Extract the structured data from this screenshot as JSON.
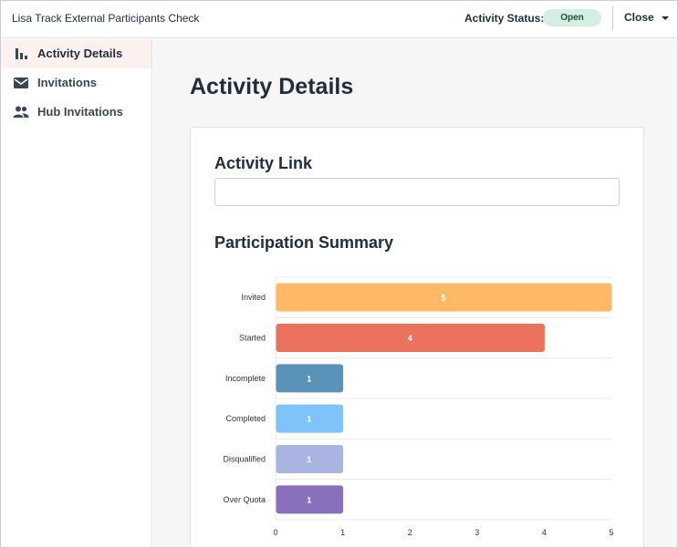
{
  "header": {
    "app_title": "Lisa Track External Participants Check",
    "status_label": "Activity Status:",
    "status_value": "Open",
    "close_label": "Close"
  },
  "sidebar": {
    "items": [
      {
        "label": "Activity Details",
        "icon": "bar-chart-icon",
        "active": true
      },
      {
        "label": "Invitations",
        "icon": "envelope-icon",
        "active": false
      },
      {
        "label": "Hub Invitations",
        "icon": "people-icon",
        "active": false
      }
    ]
  },
  "main": {
    "page_title": "Activity Details",
    "activity_link_heading": "Activity Link",
    "activity_link_value": "",
    "participation_heading": "Participation Summary"
  },
  "chart_data": {
    "type": "bar",
    "orientation": "horizontal",
    "categories": [
      "Invited",
      "Started",
      "Incomplete",
      "Completed",
      "Disqualified",
      "Over Quota"
    ],
    "values": [
      5,
      4,
      1,
      1,
      1,
      1
    ],
    "colors": [
      "#ffb866",
      "#eb725c",
      "#5b93b8",
      "#7ec4fb",
      "#a9b4e0",
      "#8a6fbb"
    ],
    "x_ticks": [
      0,
      1,
      2,
      3,
      4,
      5
    ],
    "xlim": [
      0,
      5
    ],
    "grid": true,
    "title": "",
    "xlabel": "",
    "ylabel": ""
  }
}
